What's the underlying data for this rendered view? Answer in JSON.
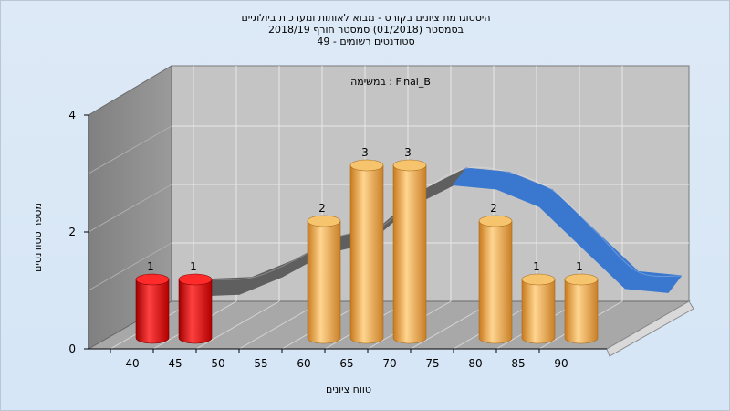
{
  "titles": {
    "line1": "היסטוגרמת ציונים בקורס - מבוא לאותות ומערכות ביולוגיים",
    "line2": "בסמסטר   (01/2018)  סמסטר חורף 2018/19",
    "line3": "סטודנטים רשומים - 49"
  },
  "chart_data": {
    "type": "bar",
    "subtitle": "במשימה : Final_B",
    "xlabel": "טווח ציונים",
    "ylabel": "מספר סטודנטים",
    "ylim": [
      0,
      4
    ],
    "y_ticks": [
      "0",
      "2",
      "4"
    ],
    "x_ticks": [
      "40",
      "45",
      "50",
      "55",
      "60",
      "65",
      "70",
      "75",
      "80",
      "85",
      "90"
    ],
    "bars": [
      {
        "x": 40,
        "value": 1,
        "label": "1",
        "color": "#e81818"
      },
      {
        "x": 45,
        "value": 1,
        "label": "1",
        "color": "#e81818"
      },
      {
        "x": 60,
        "value": 2,
        "label": "2",
        "color": "#f0aa4a"
      },
      {
        "x": 65,
        "value": 3,
        "label": "3",
        "color": "#f0aa4a"
      },
      {
        "x": 70,
        "value": 3,
        "label": "3",
        "color": "#f0aa4a"
      },
      {
        "x": 80,
        "value": 2,
        "label": "2",
        "color": "#f0aa4a"
      },
      {
        "x": 85,
        "value": 1,
        "label": "1",
        "color": "#f0aa4a"
      },
      {
        "x": 90,
        "value": 1,
        "label": "1",
        "color": "#f0aa4a"
      }
    ],
    "curve": {
      "type": "ribbon",
      "colors": {
        "front": "#3a78d0",
        "back": "#5f5f5f"
      },
      "values": [
        {
          "x": 43,
          "y": 0.72
        },
        {
          "x": 48,
          "y": 0.75
        },
        {
          "x": 53,
          "y": 1.05
        },
        {
          "x": 58,
          "y": 1.45
        },
        {
          "x": 63,
          "y": 1.62
        },
        {
          "x": 68,
          "y": 2.25
        },
        {
          "x": 73,
          "y": 2.62
        },
        {
          "x": 78,
          "y": 2.55
        },
        {
          "x": 83,
          "y": 2.25
        },
        {
          "x": 88,
          "y": 1.55
        },
        {
          "x": 93,
          "y": 0.85
        },
        {
          "x": 98,
          "y": 0.78
        }
      ]
    },
    "grid": true
  }
}
